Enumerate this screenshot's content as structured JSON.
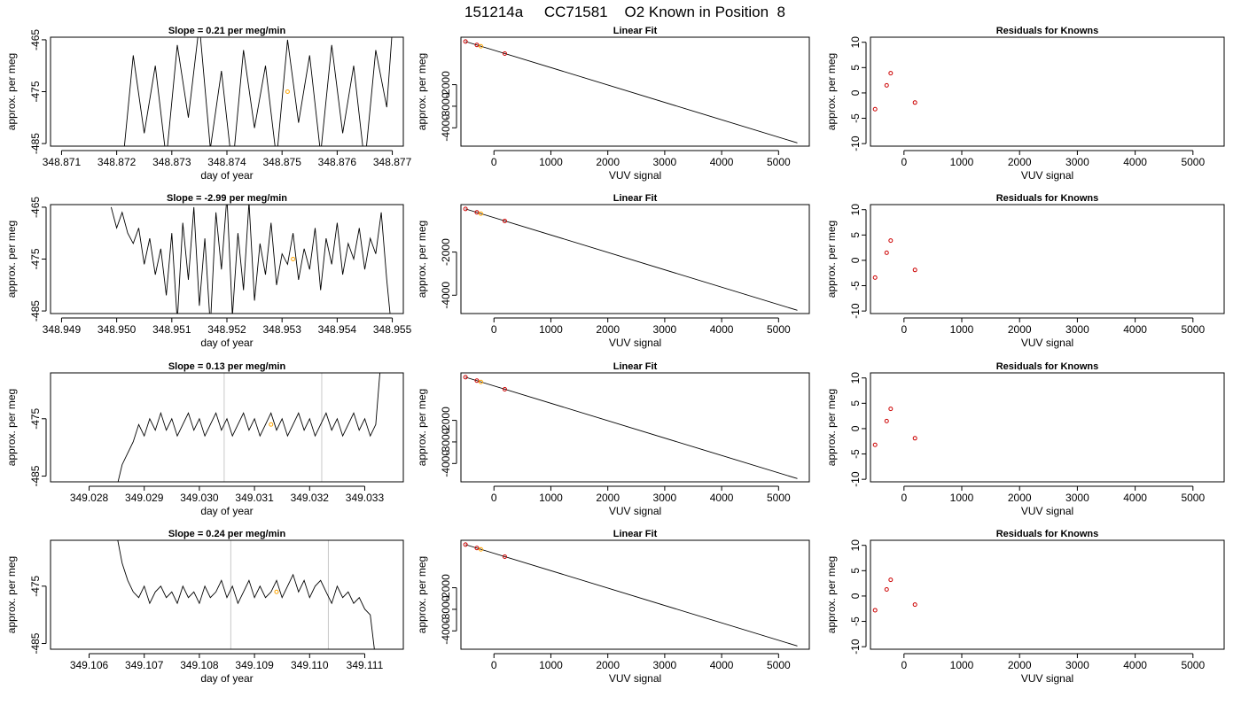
{
  "figure": {
    "title": "151214a     CC71581    O2 Known in Position  8"
  },
  "chart_data": [
    {
      "type": "line",
      "row": 0,
      "title": "Slope =  0.21  per meg/min",
      "xlabel": "day of year",
      "ylabel": "approx. per meg",
      "xlim": [
        348.8708,
        348.8772
      ],
      "ylim": [
        -485.5,
        -464.5
      ],
      "xticks": [
        348.871,
        348.872,
        348.873,
        348.874,
        348.875,
        348.876,
        348.877
      ],
      "xtick_labels": [
        "348.871",
        "348.872",
        "348.873",
        "348.874",
        "348.875",
        "348.876",
        "348.877"
      ],
      "yticks": [
        -465,
        -475,
        -485
      ],
      "ytick_labels": [
        "-465",
        "-475",
        "-485"
      ],
      "x": [
        348.8721,
        348.8723,
        348.8725,
        348.8727,
        348.8729,
        348.8731,
        348.8733,
        348.8735,
        348.8737,
        348.8739,
        348.8741,
        348.8743,
        348.8745,
        348.8747,
        348.8749,
        348.8751,
        348.8753,
        348.8755,
        348.8757,
        348.8759,
        348.8761,
        348.8763,
        348.8765,
        348.8767,
        348.8769,
        348.877
      ],
      "y": [
        -490,
        -468,
        -483,
        -470,
        -488,
        -466,
        -480,
        -462,
        -486,
        -471,
        -490,
        -467,
        -482,
        -470,
        -488,
        -465,
        -481,
        -468,
        -487,
        -466,
        -483,
        -470,
        -489,
        -467,
        -478,
        -463
      ],
      "markers": [
        {
          "x": 348.8751,
          "y": -475,
          "color": "#ffa500"
        }
      ],
      "vlines": []
    },
    {
      "type": "scatter",
      "row": 0,
      "title": "Linear Fit",
      "xlabel": "VUV signal",
      "ylabel": "approx. per meg",
      "xlim": [
        -580,
        5540
      ],
      "ylim": [
        -4850,
        200
      ],
      "xticks": [
        0,
        1000,
        2000,
        3000,
        4000,
        5000
      ],
      "xtick_labels": [
        "0",
        "1000",
        "2000",
        "3000",
        "4000",
        "5000"
      ],
      "yticks": [
        -2000,
        -3000,
        -4000
      ],
      "ytick_labels": [
        "-2000",
        "-3000",
        "-4000"
      ],
      "points": [
        {
          "x": -500,
          "y": 0,
          "color": "#cc0000"
        },
        {
          "x": -300,
          "y": -160,
          "color": "#cc0000"
        },
        {
          "x": -230,
          "y": -220,
          "color": "#ffa500"
        },
        {
          "x": 190,
          "y": -560,
          "color": "#cc0000"
        }
      ],
      "fit_line": {
        "x": [
          -500,
          5330
        ],
        "y": [
          0,
          -4700
        ]
      }
    },
    {
      "type": "scatter",
      "row": 0,
      "title": "Residuals for Knowns",
      "xlabel": "VUV signal",
      "ylabel": "approx. per meg",
      "xlim": [
        -580,
        5540
      ],
      "ylim": [
        -10.5,
        11
      ],
      "xticks": [
        0,
        1000,
        2000,
        3000,
        4000,
        5000
      ],
      "xtick_labels": [
        "0",
        "1000",
        "2000",
        "3000",
        "4000",
        "5000"
      ],
      "yticks": [
        10,
        5,
        0,
        -5,
        -10
      ],
      "ytick_labels": [
        "10",
        "5",
        "0",
        "-5",
        "-10"
      ],
      "points": [
        {
          "x": -500,
          "y": -3.2,
          "color": "#cc0000"
        },
        {
          "x": -300,
          "y": 1.5,
          "color": "#cc0000"
        },
        {
          "x": -230,
          "y": 3.9,
          "color": "#cc0000"
        },
        {
          "x": 190,
          "y": -1.9,
          "color": "#cc0000"
        }
      ]
    },
    {
      "type": "line",
      "row": 1,
      "title": "Slope =  -2.99  per meg/min",
      "xlabel": "day of year",
      "ylabel": "approx. per meg",
      "xlim": [
        348.9488,
        348.9552
      ],
      "ylim": [
        -485.5,
        -464.5
      ],
      "xticks": [
        348.949,
        348.95,
        348.951,
        348.952,
        348.953,
        348.954,
        348.955
      ],
      "xtick_labels": [
        "348.949",
        "348.950",
        "348.951",
        "348.952",
        "348.953",
        "348.954",
        "348.955"
      ],
      "yticks": [
        -465,
        -475,
        -485
      ],
      "ytick_labels": [
        "-465",
        "-475",
        "-485"
      ],
      "x": [
        348.9499,
        348.95,
        348.9501,
        348.9502,
        348.9503,
        348.9504,
        348.9505,
        348.9506,
        348.9507,
        348.9508,
        348.9509,
        348.951,
        348.9511,
        348.9512,
        348.9513,
        348.9514,
        348.9515,
        348.9516,
        348.9517,
        348.9518,
        348.9519,
        348.952,
        348.9521,
        348.9522,
        348.9523,
        348.9524,
        348.9525,
        348.9526,
        348.9527,
        348.9528,
        348.9529,
        348.953,
        348.9531,
        348.9532,
        348.9533,
        348.9534,
        348.9535,
        348.9536,
        348.9537,
        348.9538,
        348.9539,
        348.954,
        348.9541,
        348.9542,
        348.9543,
        348.9544,
        348.9545,
        348.9546,
        348.9547,
        348.9548,
        348.9549,
        348.955
      ],
      "y": [
        -465,
        -469,
        -466,
        -470,
        -472,
        -469,
        -476,
        -471,
        -478,
        -473,
        -482,
        -470,
        -487,
        -468,
        -479,
        -465,
        -484,
        -471,
        -488,
        -466,
        -477,
        -463,
        -486,
        -470,
        -481,
        -464,
        -483,
        -472,
        -478,
        -468,
        -480,
        -474,
        -476,
        -470,
        -479,
        -473,
        -477,
        -469,
        -481,
        -471,
        -476,
        -468,
        -478,
        -472,
        -475,
        -469,
        -477,
        -471,
        -474,
        -466,
        -479,
        -490
      ],
      "markers": [
        {
          "x": 348.9532,
          "y": -475,
          "color": "#ffa500"
        }
      ],
      "vlines": []
    },
    {
      "type": "scatter",
      "row": 1,
      "title": "Linear Fit",
      "xlabel": "VUV signal",
      "ylabel": "approx. per meg",
      "xlim": [
        -580,
        5540
      ],
      "ylim": [
        -4850,
        200
      ],
      "xticks": [
        0,
        1000,
        2000,
        3000,
        4000,
        5000
      ],
      "xtick_labels": [
        "0",
        "1000",
        "2000",
        "3000",
        "4000",
        "5000"
      ],
      "yticks": [
        -2000,
        -4000
      ],
      "ytick_labels": [
        "-2000",
        "-4000"
      ],
      "points": [
        {
          "x": -500,
          "y": 0,
          "color": "#cc0000"
        },
        {
          "x": -300,
          "y": -160,
          "color": "#cc0000"
        },
        {
          "x": -230,
          "y": -220,
          "color": "#ffa500"
        },
        {
          "x": 190,
          "y": -560,
          "color": "#cc0000"
        }
      ],
      "fit_line": {
        "x": [
          -500,
          5330
        ],
        "y": [
          0,
          -4700
        ]
      }
    },
    {
      "type": "scatter",
      "row": 1,
      "title": "Residuals for Knowns",
      "xlabel": "VUV signal",
      "ylabel": "approx. per meg",
      "xlim": [
        -580,
        5540
      ],
      "ylim": [
        -10.5,
        11
      ],
      "xticks": [
        0,
        1000,
        2000,
        3000,
        4000,
        5000
      ],
      "xtick_labels": [
        "0",
        "1000",
        "2000",
        "3000",
        "4000",
        "5000"
      ],
      "yticks": [
        10,
        5,
        0,
        -5,
        -10
      ],
      "ytick_labels": [
        "10",
        "5",
        "0",
        "-5",
        "-10"
      ],
      "points": [
        {
          "x": -500,
          "y": -3.4,
          "color": "#cc0000"
        },
        {
          "x": -300,
          "y": 1.5,
          "color": "#cc0000"
        },
        {
          "x": -230,
          "y": 3.9,
          "color": "#cc0000"
        },
        {
          "x": 190,
          "y": -1.9,
          "color": "#cc0000"
        }
      ]
    },
    {
      "type": "line",
      "row": 2,
      "title": "Slope =  0.13  per meg/min",
      "xlabel": "day of year",
      "ylabel": "approx. per meg",
      "xlim": [
        349.0273,
        349.0337
      ],
      "ylim": [
        -486,
        -467
      ],
      "xticks": [
        349.028,
        349.029,
        349.03,
        349.031,
        349.032,
        349.033
      ],
      "xtick_labels": [
        "349.028",
        "349.029",
        "349.030",
        "349.031",
        "349.032",
        "349.033"
      ],
      "yticks": [
        -475,
        -485
      ],
      "ytick_labels": [
        "-475",
        "-485"
      ],
      "x": [
        349.0285,
        349.0286,
        349.0287,
        349.0288,
        349.0289,
        349.029,
        349.0291,
        349.0292,
        349.0293,
        349.0294,
        349.0295,
        349.0296,
        349.0297,
        349.0298,
        349.0299,
        349.03,
        349.0301,
        349.0302,
        349.0303,
        349.0304,
        349.0305,
        349.0306,
        349.0307,
        349.0308,
        349.0309,
        349.031,
        349.0311,
        349.0312,
        349.0313,
        349.0314,
        349.0315,
        349.0316,
        349.0317,
        349.0318,
        349.0319,
        349.032,
        349.0321,
        349.0322,
        349.0323,
        349.0324,
        349.0325,
        349.0326,
        349.0327,
        349.0328,
        349.0329,
        349.033,
        349.0331,
        349.0332,
        349.0333
      ],
      "y": [
        -487,
        -483,
        -481,
        -479,
        -476,
        -478,
        -475,
        -477,
        -474,
        -477,
        -475,
        -478,
        -476,
        -474,
        -477,
        -475,
        -478,
        -476,
        -474,
        -477,
        -475,
        -478,
        -476,
        -474,
        -477,
        -475,
        -478,
        -476,
        -474,
        -477,
        -475,
        -478,
        -476,
        -474,
        -477,
        -475,
        -478,
        -476,
        -474,
        -477,
        -475,
        -478,
        -476,
        -474,
        -477,
        -475,
        -478,
        -476,
        -464
      ],
      "markers": [
        {
          "x": 349.0313,
          "y": -476,
          "color": "#ffa500"
        }
      ],
      "vlines": [
        349.03045,
        349.03222
      ]
    },
    {
      "type": "scatter",
      "row": 2,
      "title": "Linear Fit",
      "xlabel": "VUV signal",
      "ylabel": "approx. per meg",
      "xlim": [
        -580,
        5540
      ],
      "ylim": [
        -4850,
        200
      ],
      "xticks": [
        0,
        1000,
        2000,
        3000,
        4000,
        5000
      ],
      "xtick_labels": [
        "0",
        "1000",
        "2000",
        "3000",
        "4000",
        "5000"
      ],
      "yticks": [
        -2000,
        -3000,
        -4000
      ],
      "ytick_labels": [
        "-2000",
        "-3000",
        "-4000"
      ],
      "points": [
        {
          "x": -500,
          "y": 0,
          "color": "#cc0000"
        },
        {
          "x": -300,
          "y": -160,
          "color": "#cc0000"
        },
        {
          "x": -230,
          "y": -220,
          "color": "#ffa500"
        },
        {
          "x": 190,
          "y": -560,
          "color": "#cc0000"
        }
      ],
      "fit_line": {
        "x": [
          -500,
          5330
        ],
        "y": [
          0,
          -4700
        ]
      }
    },
    {
      "type": "scatter",
      "row": 2,
      "title": "Residuals for Knowns",
      "xlabel": "VUV signal",
      "ylabel": "approx. per meg",
      "xlim": [
        -580,
        5540
      ],
      "ylim": [
        -10.5,
        11
      ],
      "xticks": [
        0,
        1000,
        2000,
        3000,
        4000,
        5000
      ],
      "xtick_labels": [
        "0",
        "1000",
        "2000",
        "3000",
        "4000",
        "5000"
      ],
      "yticks": [
        10,
        5,
        0,
        -5,
        -10
      ],
      "ytick_labels": [
        "10",
        "5",
        "0",
        "-5",
        "-10"
      ],
      "points": [
        {
          "x": -500,
          "y": -3.2,
          "color": "#cc0000"
        },
        {
          "x": -300,
          "y": 1.5,
          "color": "#cc0000"
        },
        {
          "x": -230,
          "y": 3.9,
          "color": "#cc0000"
        },
        {
          "x": 190,
          "y": -1.9,
          "color": "#cc0000"
        }
      ]
    },
    {
      "type": "line",
      "row": 3,
      "title": "Slope =  0.24  per meg/min",
      "xlabel": "day of year",
      "ylabel": "approx. per meg",
      "xlim": [
        349.1053,
        349.1117
      ],
      "ylim": [
        -486,
        -467
      ],
      "xticks": [
        349.106,
        349.107,
        349.108,
        349.109,
        349.11,
        349.111
      ],
      "xtick_labels": [
        "349.106",
        "349.107",
        "349.108",
        "349.109",
        "349.110",
        "349.111"
      ],
      "yticks": [
        -475,
        -485
      ],
      "ytick_labels": [
        "-475",
        "-485"
      ],
      "x": [
        349.1065,
        349.1066,
        349.1067,
        349.1068,
        349.1069,
        349.107,
        349.1071,
        349.1072,
        349.1073,
        349.1074,
        349.1075,
        349.1076,
        349.1077,
        349.1078,
        349.1079,
        349.108,
        349.1081,
        349.1082,
        349.1083,
        349.1084,
        349.1085,
        349.1086,
        349.1087,
        349.1088,
        349.1089,
        349.109,
        349.1091,
        349.1092,
        349.1093,
        349.1094,
        349.1095,
        349.1096,
        349.1097,
        349.1098,
        349.1099,
        349.11,
        349.1101,
        349.1102,
        349.1103,
        349.1104,
        349.1105,
        349.1106,
        349.1107,
        349.1108,
        349.1109,
        349.111,
        349.1111,
        349.1112
      ],
      "y": [
        -466,
        -471,
        -474,
        -476,
        -477,
        -475,
        -478,
        -476,
        -475,
        -477,
        -476,
        -478,
        -475,
        -477,
        -476,
        -478,
        -475,
        -477,
        -476,
        -474,
        -477,
        -475,
        -478,
        -476,
        -474,
        -477,
        -475,
        -477,
        -476,
        -474,
        -477,
        -475,
        -473,
        -476,
        -474,
        -477,
        -475,
        -474,
        -476,
        -478,
        -475,
        -477,
        -476,
        -478,
        -477,
        -479,
        -480,
        -488
      ],
      "markers": [
        {
          "x": 349.1094,
          "y": -476,
          "color": "#ffa500"
        }
      ],
      "vlines": [
        349.10857,
        349.11034
      ]
    },
    {
      "type": "scatter",
      "row": 3,
      "title": "Linear Fit",
      "xlabel": "VUV signal",
      "ylabel": "approx. per meg",
      "xlim": [
        -580,
        5540
      ],
      "ylim": [
        -4850,
        200
      ],
      "xticks": [
        0,
        1000,
        2000,
        3000,
        4000,
        5000
      ],
      "xtick_labels": [
        "0",
        "1000",
        "2000",
        "3000",
        "4000",
        "5000"
      ],
      "yticks": [
        -2000,
        -3000,
        -4000
      ],
      "ytick_labels": [
        "-2000",
        "-3000",
        "-4000"
      ],
      "points": [
        {
          "x": -500,
          "y": 0,
          "color": "#cc0000"
        },
        {
          "x": -300,
          "y": -160,
          "color": "#cc0000"
        },
        {
          "x": -230,
          "y": -220,
          "color": "#ffa500"
        },
        {
          "x": 190,
          "y": -560,
          "color": "#cc0000"
        }
      ],
      "fit_line": {
        "x": [
          -500,
          5330
        ],
        "y": [
          0,
          -4700
        ]
      }
    },
    {
      "type": "scatter",
      "row": 3,
      "title": "Residuals for Knowns",
      "xlabel": "VUV signal",
      "ylabel": "approx. per meg",
      "xlim": [
        -580,
        5540
      ],
      "ylim": [
        -10.5,
        11
      ],
      "xticks": [
        0,
        1000,
        2000,
        3000,
        4000,
        5000
      ],
      "xtick_labels": [
        "0",
        "1000",
        "2000",
        "3000",
        "4000",
        "5000"
      ],
      "yticks": [
        10,
        5,
        0,
        -5,
        -10
      ],
      "ytick_labels": [
        "10",
        "5",
        "0",
        "-5",
        "-10"
      ],
      "points": [
        {
          "x": -500,
          "y": -2.8,
          "color": "#cc0000"
        },
        {
          "x": -300,
          "y": 1.3,
          "color": "#cc0000"
        },
        {
          "x": -230,
          "y": 3.2,
          "color": "#cc0000"
        },
        {
          "x": 190,
          "y": -1.7,
          "color": "#cc0000"
        }
      ]
    }
  ]
}
